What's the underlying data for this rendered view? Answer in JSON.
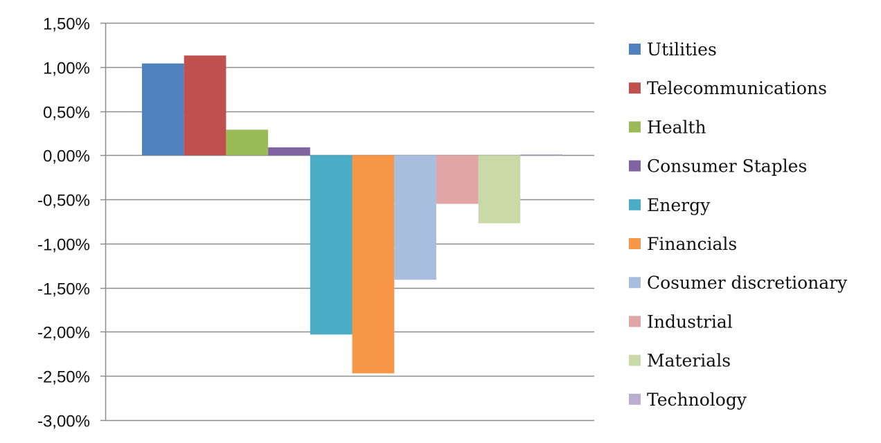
{
  "chart_data": {
    "type": "bar",
    "ylim": [
      -0.03,
      0.015
    ],
    "y_tick_step": 0.005,
    "y_tick_labels": [
      "1,50%",
      "1,00%",
      "0,50%",
      "0,00%",
      "-0,50%",
      "-1,00%",
      "-1,50%",
      "-2,00%",
      "-2,50%",
      "-3,00%"
    ],
    "grid": true,
    "legend_position": "right",
    "series": [
      {
        "name": "Utilities",
        "value": 0.0104,
        "color": "#4F81BD"
      },
      {
        "name": "Telecommunications",
        "value": 0.0113,
        "color": "#C0504D"
      },
      {
        "name": "Health",
        "value": 0.0029,
        "color": "#9BBB59"
      },
      {
        "name": "Consumer Staples",
        "value": 0.0009,
        "color": "#8064A2"
      },
      {
        "name": "Energy",
        "value": -0.0203,
        "color": "#4BACC6"
      },
      {
        "name": "Financials",
        "value": -0.0247,
        "color": "#F79646"
      },
      {
        "name": "Cosumer discretionary",
        "value": -0.0141,
        "color": "#A7BEDE"
      },
      {
        "name": "Industrial",
        "value": -0.0055,
        "color": "#E0A6A5"
      },
      {
        "name": "Materials",
        "value": -0.0077,
        "color": "#C9D9A8"
      },
      {
        "name": "Technology",
        "value": 0.0001,
        "color": "#B9AED0"
      }
    ]
  }
}
